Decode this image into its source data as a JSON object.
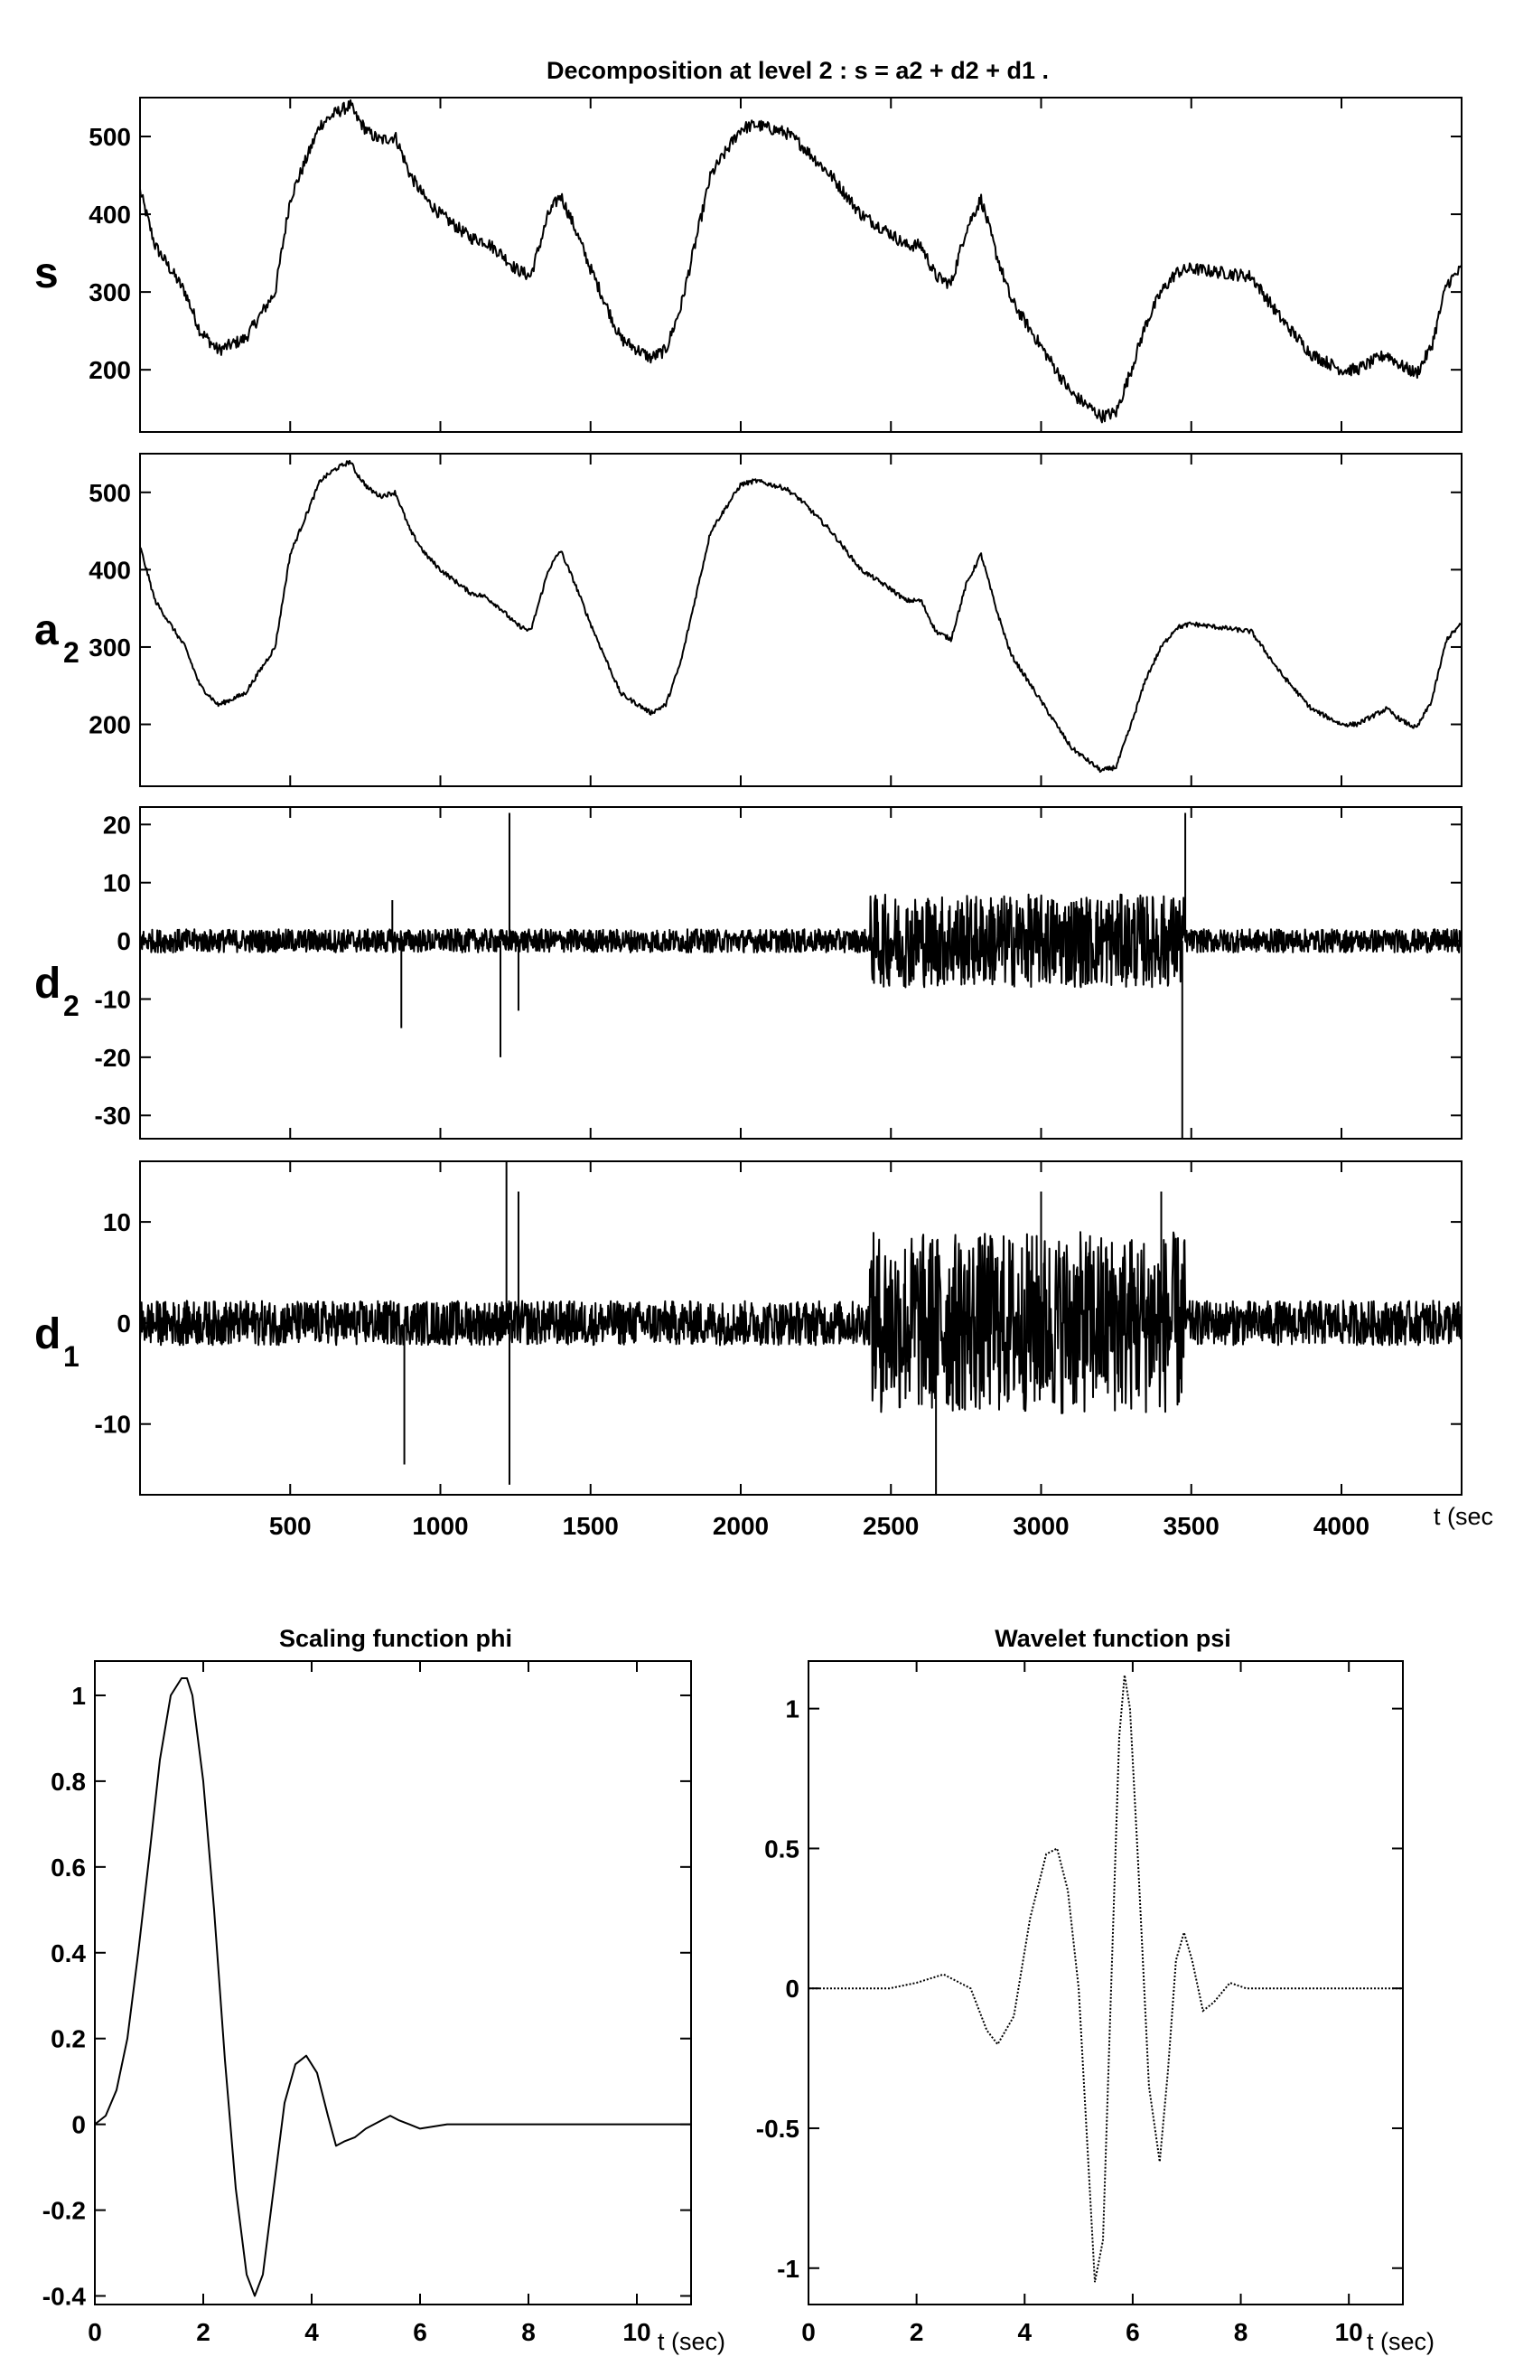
{
  "figure": {
    "decomposition_title": "Decomposition at level 2 : s = a2 + d2 + d1 .",
    "time_unit_label": "t (sec",
    "time_unit_label_small": "t (sec)"
  },
  "chart_data": [
    {
      "id": "s",
      "type": "line",
      "title": "Decomposition at level 2 : s = a2 + d2 + d1 .",
      "row_label": "s",
      "row_label_sub": "",
      "xlim": [
        0,
        4400
      ],
      "ylim": [
        120,
        550
      ],
      "yticks": [
        200,
        300,
        400,
        500
      ],
      "xticks": [
        500,
        1000,
        1500,
        2000,
        2500,
        3000,
        3500,
        4000
      ],
      "series": [
        {
          "x": [
            0,
            50,
            150,
            200,
            260,
            350,
            450,
            500,
            600,
            650,
            700,
            720,
            760,
            800,
            850,
            900,
            950,
            1000,
            1100,
            1150,
            1200,
            1250,
            1300,
            1360,
            1400,
            1450,
            1500,
            1600,
            1700,
            1750,
            1800,
            1900,
            2000,
            2050,
            2100,
            2150,
            2200,
            2250,
            2300,
            2400,
            2500,
            2550,
            2600,
            2650,
            2700,
            2750,
            2800,
            2850,
            2900,
            3000,
            3100,
            3200,
            3250,
            3300,
            3350,
            3400,
            3450,
            3500,
            3600,
            3700,
            3800,
            3900,
            4000,
            4050,
            4100,
            4150,
            4200,
            4250,
            4300,
            4350,
            4400
          ],
          "y": [
            430,
            360,
            300,
            250,
            225,
            240,
            300,
            420,
            515,
            530,
            540,
            525,
            505,
            495,
            500,
            450,
            420,
            400,
            370,
            365,
            350,
            330,
            320,
            400,
            425,
            380,
            330,
            240,
            215,
            225,
            280,
            450,
            510,
            515,
            510,
            505,
            490,
            470,
            450,
            400,
            375,
            360,
            360,
            320,
            310,
            380,
            420,
            350,
            290,
            230,
            170,
            140,
            145,
            200,
            260,
            300,
            325,
            330,
            325,
            320,
            265,
            220,
            200,
            200,
            210,
            220,
            205,
            195,
            230,
            310,
            330
          ],
          "noise": 8
        }
      ]
    },
    {
      "id": "a2",
      "type": "line",
      "title": "",
      "row_label": "a",
      "row_label_sub": "2",
      "xlim": [
        0,
        4400
      ],
      "ylim": [
        120,
        550
      ],
      "yticks": [
        200,
        300,
        400,
        500
      ],
      "xticks": [
        500,
        1000,
        1500,
        2000,
        2500,
        3000,
        3500,
        4000
      ],
      "series": [
        {
          "x": [
            0,
            50,
            150,
            200,
            260,
            350,
            450,
            500,
            600,
            650,
            700,
            720,
            760,
            800,
            850,
            900,
            950,
            1000,
            1100,
            1150,
            1200,
            1250,
            1300,
            1360,
            1400,
            1450,
            1500,
            1600,
            1700,
            1750,
            1800,
            1900,
            2000,
            2050,
            2100,
            2150,
            2200,
            2250,
            2300,
            2400,
            2500,
            2550,
            2600,
            2650,
            2700,
            2750,
            2800,
            2850,
            2900,
            3000,
            3100,
            3200,
            3250,
            3300,
            3350,
            3400,
            3450,
            3500,
            3600,
            3700,
            3800,
            3900,
            4000,
            4050,
            4100,
            4150,
            4200,
            4250,
            4300,
            4350,
            4400
          ],
          "y": [
            430,
            360,
            300,
            250,
            225,
            240,
            300,
            420,
            515,
            530,
            540,
            525,
            505,
            495,
            500,
            450,
            420,
            400,
            370,
            365,
            350,
            330,
            320,
            400,
            425,
            380,
            330,
            240,
            215,
            225,
            280,
            450,
            510,
            515,
            510,
            505,
            490,
            470,
            450,
            400,
            375,
            360,
            360,
            320,
            310,
            380,
            420,
            350,
            290,
            230,
            170,
            140,
            145,
            200,
            260,
            300,
            325,
            330,
            325,
            320,
            265,
            220,
            200,
            200,
            210,
            220,
            205,
            195,
            230,
            310,
            330
          ],
          "noise": 3
        }
      ]
    },
    {
      "id": "d2",
      "type": "line",
      "title": "",
      "row_label": "d",
      "row_label_sub": "2",
      "xlim": [
        0,
        4400
      ],
      "ylim": [
        -34,
        23
      ],
      "yticks": [
        -30,
        -20,
        -10,
        0,
        10,
        20
      ],
      "xticks": [
        500,
        1000,
        1500,
        2000,
        2500,
        3000,
        3500,
        4000
      ],
      "noise_regions": [
        {
          "from": 0,
          "to": 2430,
          "amp": 2
        },
        {
          "from": 2430,
          "to": 3480,
          "amp": 8
        },
        {
          "from": 3480,
          "to": 4400,
          "amp": 2
        }
      ],
      "spikes": [
        [
          840,
          7
        ],
        [
          870,
          -15
        ],
        [
          1200,
          -20
        ],
        [
          1230,
          22
        ],
        [
          1260,
          -12
        ],
        [
          3480,
          22
        ],
        [
          3470,
          -34
        ]
      ]
    },
    {
      "id": "d1",
      "type": "line",
      "title": "",
      "row_label": "d",
      "row_label_sub": "1",
      "xlim": [
        0,
        4400
      ],
      "ylim": [
        -17,
        16
      ],
      "yticks": [
        -10,
        0,
        10
      ],
      "xticks": [
        500,
        1000,
        1500,
        2000,
        2500,
        3000,
        3500,
        4000
      ],
      "noise_regions": [
        {
          "from": 0,
          "to": 2430,
          "amp": 2.2
        },
        {
          "from": 2430,
          "to": 3480,
          "amp": 9
        },
        {
          "from": 3480,
          "to": 4400,
          "amp": 2.2
        }
      ],
      "spikes": [
        [
          880,
          -14
        ],
        [
          1220,
          16
        ],
        [
          1230,
          -16
        ],
        [
          1260,
          13
        ],
        [
          2650,
          -17
        ],
        [
          3000,
          13
        ],
        [
          3400,
          13
        ]
      ]
    },
    {
      "id": "phi",
      "type": "line",
      "title": "Scaling function phi",
      "xlim": [
        0,
        11
      ],
      "ylim": [
        -0.42,
        1.08
      ],
      "yticks": [
        -0.4,
        -0.2,
        0,
        0.2,
        0.4,
        0.6,
        0.8,
        1
      ],
      "ytick_labels": [
        "-0.4",
        "-0.2",
        "0",
        "0.2",
        "0.4",
        "0.6",
        "0.8",
        "1"
      ],
      "xticks": [
        0,
        2,
        4,
        6,
        8,
        10
      ],
      "series": [
        {
          "x": [
            0,
            0.2,
            0.4,
            0.6,
            0.8,
            1.0,
            1.2,
            1.4,
            1.6,
            1.7,
            1.8,
            2.0,
            2.2,
            2.4,
            2.6,
            2.8,
            2.95,
            3.1,
            3.3,
            3.5,
            3.7,
            3.9,
            4.1,
            4.3,
            4.45,
            4.6,
            4.8,
            5.0,
            5.3,
            5.45,
            5.6,
            5.8,
            6.0,
            6.5,
            7.0,
            7.5,
            8,
            11
          ],
          "y": [
            0,
            0.02,
            0.08,
            0.2,
            0.4,
            0.62,
            0.85,
            1.0,
            1.04,
            1.04,
            1.0,
            0.8,
            0.5,
            0.15,
            -0.15,
            -0.35,
            -0.4,
            -0.35,
            -0.15,
            0.05,
            0.14,
            0.16,
            0.12,
            0.02,
            -0.05,
            -0.04,
            -0.03,
            -0.01,
            0.01,
            0.02,
            0.01,
            0.0,
            -0.01,
            0.0,
            0.0,
            0.0,
            0.0,
            0.0
          ]
        }
      ]
    },
    {
      "id": "psi",
      "type": "line",
      "title": "Wavelet function psi",
      "xlim": [
        0,
        11
      ],
      "ylim": [
        -1.13,
        1.17
      ],
      "yticks": [
        -1,
        -0.5,
        0,
        0.5,
        1
      ],
      "ytick_labels": [
        "-1",
        "-0.5",
        "0",
        "0.5",
        "1"
      ],
      "xticks": [
        0,
        2,
        4,
        6,
        8,
        10
      ],
      "series": [
        {
          "x": [
            0,
            1.0,
            1.5,
            2.0,
            2.5,
            3.0,
            3.3,
            3.5,
            3.8,
            4.1,
            4.4,
            4.6,
            4.8,
            5.0,
            5.2,
            5.3,
            5.45,
            5.6,
            5.75,
            5.85,
            5.95,
            6.1,
            6.3,
            6.5,
            6.65,
            6.8,
            6.95,
            7.1,
            7.3,
            7.5,
            7.8,
            8.1,
            8.5,
            11
          ],
          "y": [
            0,
            0,
            0,
            0.02,
            0.05,
            0.0,
            -0.15,
            -0.2,
            -0.1,
            0.25,
            0.48,
            0.5,
            0.35,
            0.0,
            -0.7,
            -1.05,
            -0.9,
            0.0,
            0.9,
            1.12,
            1.0,
            0.45,
            -0.35,
            -0.62,
            -0.3,
            0.1,
            0.2,
            0.1,
            -0.08,
            -0.05,
            0.02,
            0.0,
            0.0,
            0.0
          ]
        }
      ]
    }
  ]
}
